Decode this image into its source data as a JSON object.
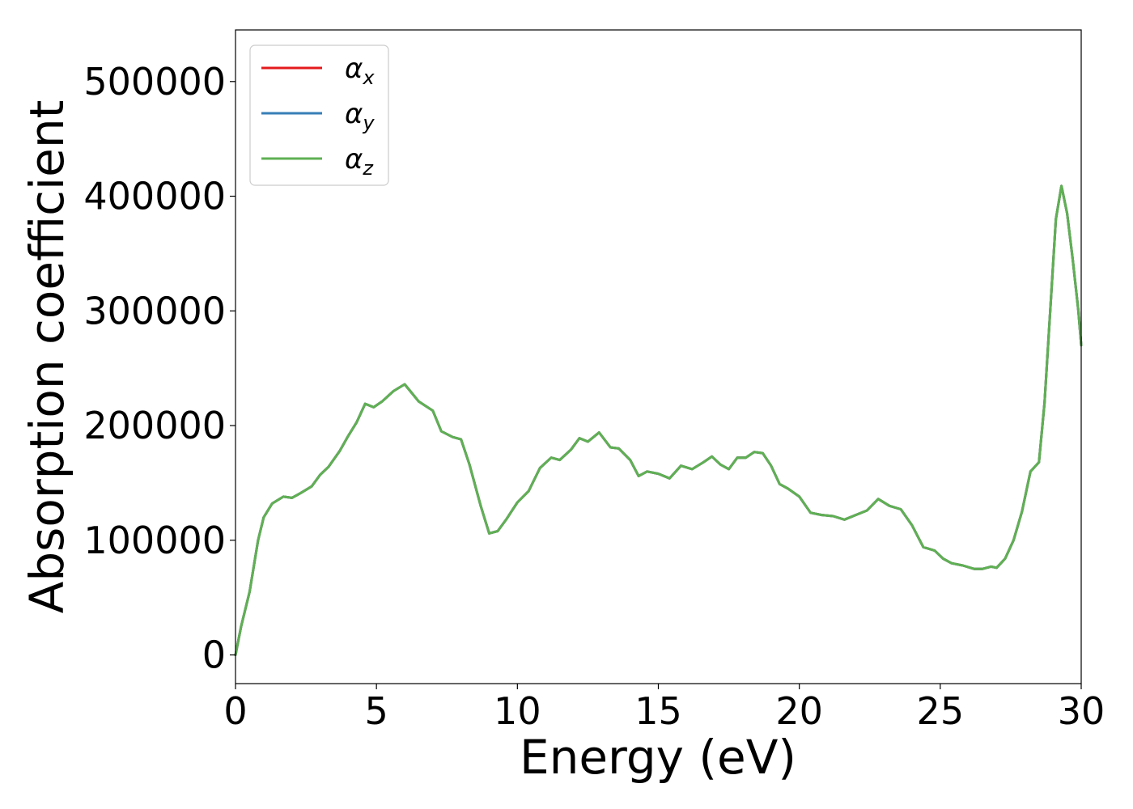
{
  "chart_data": {
    "type": "line",
    "xlabel": "Energy (eV)",
    "ylabel": "Absorption coefficient",
    "xlim": [
      0,
      30
    ],
    "ylim": [
      -25000,
      545000
    ],
    "xticks": [
      0,
      5,
      10,
      15,
      20,
      25,
      30
    ],
    "xtick_labels": [
      "0",
      "5",
      "10",
      "15",
      "20",
      "25",
      "30"
    ],
    "yticks": [
      0,
      100000,
      200000,
      300000,
      400000,
      500000
    ],
    "ytick_labels": [
      "0",
      "100000",
      "200000",
      "300000",
      "400000",
      "500000"
    ],
    "grid": false,
    "legend_position": "top-left",
    "x": [
      0,
      0.2,
      0.5,
      0.8,
      1.0,
      1.3,
      1.7,
      2.0,
      2.3,
      2.7,
      3.0,
      3.3,
      3.7,
      4.0,
      4.3,
      4.6,
      4.9,
      5.2,
      5.6,
      6.0,
      6.2,
      6.5,
      7.0,
      7.3,
      7.7,
      8.0,
      8.3,
      8.7,
      9.0,
      9.3,
      9.6,
      10.0,
      10.4,
      10.8,
      11.2,
      11.5,
      11.9,
      12.2,
      12.5,
      12.9,
      13.3,
      13.6,
      14.0,
      14.3,
      14.6,
      15.0,
      15.4,
      15.8,
      16.2,
      16.6,
      16.9,
      17.2,
      17.5,
      17.8,
      18.1,
      18.4,
      18.7,
      19.0,
      19.3,
      19.6,
      20.0,
      20.4,
      20.8,
      21.2,
      21.6,
      22.0,
      22.4,
      22.8,
      23.2,
      23.6,
      24.0,
      24.4,
      24.8,
      25.1,
      25.4,
      25.8,
      26.2,
      26.5,
      26.8,
      27.0,
      27.3,
      27.6,
      27.9,
      28.2,
      28.5,
      28.7,
      28.9,
      29.1,
      29.3,
      29.5,
      29.7,
      29.9,
      30.0
    ],
    "series": [
      {
        "name": "αx",
        "color": "#e41a1c",
        "values": [
          0,
          25000,
          55000,
          100000,
          120000,
          132000,
          138000,
          137000,
          141000,
          147000,
          157000,
          164000,
          178000,
          191000,
          203000,
          219000,
          216000,
          221000,
          230000,
          236000,
          230000,
          221000,
          213000,
          195000,
          190000,
          188000,
          166000,
          130000,
          106000,
          108000,
          118000,
          133000,
          143000,
          163000,
          172000,
          170000,
          179000,
          189000,
          186000,
          194000,
          181000,
          180000,
          170000,
          156000,
          160000,
          158000,
          154000,
          165000,
          162000,
          168000,
          173000,
          166000,
          162000,
          172000,
          172000,
          177000,
          176000,
          165000,
          149000,
          145000,
          138000,
          124000,
          122000,
          121000,
          118000,
          122000,
          126000,
          136000,
          130000,
          127000,
          113000,
          94000,
          91000,
          84000,
          80000,
          78000,
          75000,
          75000,
          77000,
          76000,
          84000,
          100000,
          125000,
          160000,
          168000,
          220000,
          300000,
          380000,
          409000,
          385000,
          345000,
          300000,
          270000
        ]
      },
      {
        "name": "αy",
        "color": "#377eb8",
        "values": [
          0,
          25000,
          55000,
          100000,
          120000,
          132000,
          138000,
          137000,
          141000,
          147000,
          157000,
          164000,
          178000,
          191000,
          203000,
          219000,
          216000,
          221000,
          230000,
          236000,
          230000,
          221000,
          213000,
          195000,
          190000,
          188000,
          166000,
          130000,
          106000,
          108000,
          118000,
          133000,
          143000,
          163000,
          172000,
          170000,
          179000,
          189000,
          186000,
          194000,
          181000,
          180000,
          170000,
          156000,
          160000,
          158000,
          154000,
          165000,
          162000,
          168000,
          173000,
          166000,
          162000,
          172000,
          172000,
          177000,
          176000,
          165000,
          149000,
          145000,
          138000,
          124000,
          122000,
          121000,
          118000,
          122000,
          126000,
          136000,
          130000,
          127000,
          113000,
          94000,
          91000,
          84000,
          80000,
          78000,
          75000,
          75000,
          77000,
          76000,
          84000,
          100000,
          125000,
          160000,
          168000,
          220000,
          300000,
          380000,
          409000,
          385000,
          345000,
          300000,
          270000
        ]
      },
      {
        "name": "αz",
        "color": "#5fb053",
        "values": [
          0,
          25000,
          55000,
          100000,
          120000,
          132000,
          138000,
          137000,
          141000,
          147000,
          157000,
          164000,
          178000,
          191000,
          203000,
          219000,
          216000,
          221000,
          230000,
          236000,
          230000,
          221000,
          213000,
          195000,
          190000,
          188000,
          166000,
          130000,
          106000,
          108000,
          118000,
          133000,
          143000,
          163000,
          172000,
          170000,
          179000,
          189000,
          186000,
          194000,
          181000,
          180000,
          170000,
          156000,
          160000,
          158000,
          154000,
          165000,
          162000,
          168000,
          173000,
          166000,
          162000,
          172000,
          172000,
          177000,
          176000,
          165000,
          149000,
          145000,
          138000,
          124000,
          122000,
          121000,
          118000,
          122000,
          126000,
          136000,
          130000,
          127000,
          113000,
          94000,
          91000,
          84000,
          80000,
          78000,
          75000,
          75000,
          77000,
          76000,
          84000,
          100000,
          125000,
          160000,
          168000,
          220000,
          300000,
          380000,
          409000,
          385000,
          345000,
          300000,
          270000
        ]
      }
    ],
    "legend": [
      {
        "symbol": "α",
        "subscript": "x",
        "color": "#e41a1c"
      },
      {
        "symbol": "α",
        "subscript": "y",
        "color": "#377eb8"
      },
      {
        "symbol": "α",
        "subscript": "z",
        "color": "#5fb053"
      }
    ]
  }
}
